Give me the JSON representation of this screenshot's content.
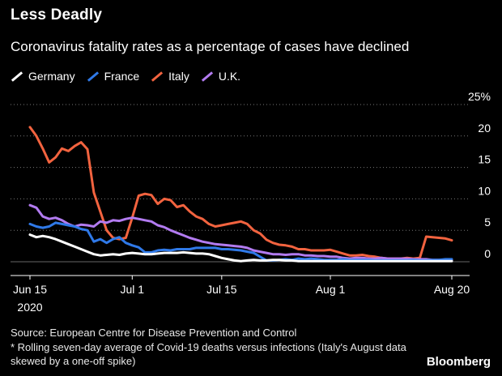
{
  "header": {
    "title": "Less Deadly",
    "subtitle": "Coronavirus fatality rates as a percentage of cases have declined"
  },
  "footer": {
    "source": "Source: European Centre for Disease Prevention and Control",
    "note": "* Rolling seven-day average of Covid-19 deaths versus infections (Italy's August data skewed by a one-off spike)",
    "brand": "Bloomberg"
  },
  "chart_data": {
    "type": "line",
    "title": "Less Deadly",
    "subtitle": "Coronavirus fatality rates as a percentage of cases have declined",
    "x_start": "2020-06-15",
    "x_end": "2020-08-21",
    "xticks": [
      {
        "day": 0,
        "label": "Jun 15",
        "sub": "2020"
      },
      {
        "day": 16,
        "label": "Jul 1",
        "sub": ""
      },
      {
        "day": 30,
        "label": "Jul 15",
        "sub": ""
      },
      {
        "day": 47,
        "label": "Aug 1",
        "sub": ""
      },
      {
        "day": 66,
        "label": "Aug 20",
        "sub": ""
      }
    ],
    "yticks": [
      {
        "value": 0,
        "label": "0"
      },
      {
        "value": 5,
        "label": "5"
      },
      {
        "value": 10,
        "label": "10"
      },
      {
        "value": 15,
        "label": "15"
      },
      {
        "value": 20,
        "label": "20"
      },
      {
        "value": 25,
        "label": "25%"
      }
    ],
    "ylim": [
      0,
      25
    ],
    "grid": true,
    "legend_position": "top-left",
    "series": [
      {
        "name": "Germany",
        "color": "#ffffff",
        "points": [
          [
            0,
            4.3
          ],
          [
            1,
            3.9
          ],
          [
            2,
            4.1
          ],
          [
            3,
            3.9
          ],
          [
            4,
            3.6
          ],
          [
            5,
            3.2
          ],
          [
            6,
            2.8
          ],
          [
            7,
            2.4
          ],
          [
            8,
            2.0
          ],
          [
            9,
            1.6
          ],
          [
            10,
            1.2
          ],
          [
            11,
            1.0
          ],
          [
            12,
            1.1
          ],
          [
            13,
            1.2
          ],
          [
            14,
            1.1
          ],
          [
            15,
            1.3
          ],
          [
            16,
            1.4
          ],
          [
            17,
            1.3
          ],
          [
            18,
            1.2
          ],
          [
            19,
            1.2
          ],
          [
            20,
            1.3
          ],
          [
            21,
            1.4
          ],
          [
            22,
            1.4
          ],
          [
            23,
            1.4
          ],
          [
            24,
            1.5
          ],
          [
            25,
            1.4
          ],
          [
            26,
            1.3
          ],
          [
            27,
            1.3
          ],
          [
            28,
            1.2
          ],
          [
            29,
            0.9
          ],
          [
            30,
            0.6
          ],
          [
            31,
            0.4
          ],
          [
            32,
            0.2
          ],
          [
            33,
            0.1
          ],
          [
            34,
            0.2
          ],
          [
            35,
            0.3
          ],
          [
            36,
            0.2
          ],
          [
            37,
            0.2
          ],
          [
            38,
            0.3
          ],
          [
            39,
            0.3
          ],
          [
            40,
            0.2
          ],
          [
            41,
            0.2
          ],
          [
            42,
            0.1
          ],
          [
            43,
            0.1
          ],
          [
            44,
            0.1
          ],
          [
            45,
            0.1
          ],
          [
            46,
            0.1
          ],
          [
            47,
            0.1
          ],
          [
            48,
            0.1
          ],
          [
            49,
            0.1
          ],
          [
            50,
            0.1
          ],
          [
            52,
            0.1
          ],
          [
            54,
            0.1
          ],
          [
            56,
            0.1
          ],
          [
            58,
            0.1
          ],
          [
            60,
            0.1
          ],
          [
            62,
            0.1
          ],
          [
            64,
            0.1
          ],
          [
            66,
            0.1
          ]
        ]
      },
      {
        "name": "France",
        "color": "#2f79e8",
        "points": [
          [
            0,
            6.0
          ],
          [
            1,
            5.6
          ],
          [
            2,
            5.4
          ],
          [
            3,
            5.6
          ],
          [
            4,
            6.2
          ],
          [
            5,
            6.0
          ],
          [
            6,
            5.8
          ],
          [
            7,
            5.6
          ],
          [
            8,
            5.2
          ],
          [
            9,
            5.0
          ],
          [
            10,
            3.2
          ],
          [
            11,
            3.6
          ],
          [
            12,
            3.0
          ],
          [
            13,
            3.6
          ],
          [
            14,
            3.9
          ],
          [
            15,
            3.0
          ],
          [
            16,
            2.6
          ],
          [
            17,
            2.3
          ],
          [
            18,
            1.5
          ],
          [
            19,
            1.5
          ],
          [
            20,
            1.8
          ],
          [
            21,
            1.9
          ],
          [
            22,
            1.8
          ],
          [
            23,
            2.0
          ],
          [
            24,
            2.0
          ],
          [
            25,
            2.0
          ],
          [
            26,
            2.2
          ],
          [
            27,
            2.2
          ],
          [
            28,
            2.2
          ],
          [
            29,
            2.2
          ],
          [
            30,
            2.0
          ],
          [
            31,
            2.0
          ],
          [
            32,
            1.9
          ],
          [
            33,
            1.8
          ],
          [
            34,
            1.6
          ],
          [
            35,
            1.4
          ],
          [
            36,
            0.8
          ],
          [
            37,
            0.2
          ],
          [
            38,
            0.2
          ],
          [
            39,
            0.3
          ],
          [
            40,
            0.4
          ],
          [
            41,
            0.3
          ],
          [
            42,
            0.5
          ],
          [
            43,
            0.4
          ],
          [
            44,
            0.5
          ],
          [
            45,
            0.4
          ],
          [
            46,
            0.3
          ],
          [
            47,
            0.3
          ],
          [
            48,
            0.3
          ],
          [
            49,
            0.4
          ],
          [
            50,
            0.3
          ],
          [
            51,
            0.3
          ],
          [
            52,
            0.3
          ],
          [
            53,
            0.3
          ],
          [
            54,
            0.2
          ],
          [
            55,
            0.2
          ],
          [
            56,
            0.2
          ],
          [
            57,
            0.2
          ],
          [
            58,
            0.2
          ],
          [
            59,
            0.2
          ],
          [
            60,
            0.3
          ],
          [
            61,
            0.2
          ],
          [
            62,
            0.2
          ],
          [
            63,
            0.3
          ],
          [
            64,
            0.3
          ],
          [
            65,
            0.4
          ],
          [
            66,
            0.4
          ]
        ]
      },
      {
        "name": "Italy",
        "color": "#f2633f",
        "points": [
          [
            0,
            21.4
          ],
          [
            1,
            20.0
          ],
          [
            2,
            18.0
          ],
          [
            3,
            15.8
          ],
          [
            4,
            16.6
          ],
          [
            5,
            18.0
          ],
          [
            6,
            17.6
          ],
          [
            7,
            18.4
          ],
          [
            8,
            19.0
          ],
          [
            9,
            17.9
          ],
          [
            10,
            11.0
          ],
          [
            11,
            8.0
          ],
          [
            12,
            5.0
          ],
          [
            13,
            3.8
          ],
          [
            14,
            3.6
          ],
          [
            15,
            3.8
          ],
          [
            16,
            7.0
          ],
          [
            17,
            10.5
          ],
          [
            18,
            10.8
          ],
          [
            19,
            10.6
          ],
          [
            20,
            9.2
          ],
          [
            21,
            10.0
          ],
          [
            22,
            9.8
          ],
          [
            23,
            8.7
          ],
          [
            24,
            9.0
          ],
          [
            25,
            8.0
          ],
          [
            26,
            7.2
          ],
          [
            27,
            6.8
          ],
          [
            28,
            6.0
          ],
          [
            29,
            5.6
          ],
          [
            30,
            5.8
          ],
          [
            31,
            6.0
          ],
          [
            32,
            6.2
          ],
          [
            33,
            6.4
          ],
          [
            34,
            6.0
          ],
          [
            35,
            5.0
          ],
          [
            36,
            4.5
          ],
          [
            37,
            3.5
          ],
          [
            38,
            3.0
          ],
          [
            39,
            2.7
          ],
          [
            40,
            2.6
          ],
          [
            41,
            2.4
          ],
          [
            42,
            2.0
          ],
          [
            43,
            2.0
          ],
          [
            44,
            1.8
          ],
          [
            45,
            1.8
          ],
          [
            46,
            1.8
          ],
          [
            47,
            1.9
          ],
          [
            48,
            1.6
          ],
          [
            49,
            1.3
          ],
          [
            50,
            1.0
          ],
          [
            51,
            1.0
          ],
          [
            52,
            1.1
          ],
          [
            53,
            0.9
          ],
          [
            54,
            0.8
          ],
          [
            55,
            0.6
          ],
          [
            56,
            0.5
          ],
          [
            57,
            0.5
          ],
          [
            58,
            0.5
          ],
          [
            59,
            0.6
          ],
          [
            60,
            0.5
          ],
          [
            61,
            0.6
          ],
          [
            62,
            4.0
          ],
          [
            63,
            3.9
          ],
          [
            64,
            3.8
          ],
          [
            65,
            3.7
          ],
          [
            66,
            3.4
          ]
        ]
      },
      {
        "name": "U.K.",
        "color": "#b27bf0",
        "points": [
          [
            0,
            9.0
          ],
          [
            1,
            8.6
          ],
          [
            2,
            7.2
          ],
          [
            3,
            6.8
          ],
          [
            4,
            7.0
          ],
          [
            5,
            6.6
          ],
          [
            6,
            6.0
          ],
          [
            7,
            5.6
          ],
          [
            8,
            5.9
          ],
          [
            9,
            5.8
          ],
          [
            10,
            5.6
          ],
          [
            11,
            6.4
          ],
          [
            12,
            6.2
          ],
          [
            13,
            6.6
          ],
          [
            14,
            6.5
          ],
          [
            15,
            6.8
          ],
          [
            16,
            7.0
          ],
          [
            17,
            6.8
          ],
          [
            18,
            6.6
          ],
          [
            19,
            6.4
          ],
          [
            20,
            5.8
          ],
          [
            21,
            5.5
          ],
          [
            22,
            5.0
          ],
          [
            23,
            4.6
          ],
          [
            24,
            4.2
          ],
          [
            25,
            3.8
          ],
          [
            26,
            3.5
          ],
          [
            27,
            3.2
          ],
          [
            28,
            3.0
          ],
          [
            29,
            2.8
          ],
          [
            30,
            2.7
          ],
          [
            31,
            2.6
          ],
          [
            32,
            2.5
          ],
          [
            33,
            2.4
          ],
          [
            34,
            2.2
          ],
          [
            35,
            1.8
          ],
          [
            36,
            1.6
          ],
          [
            37,
            1.4
          ],
          [
            38,
            1.2
          ],
          [
            39,
            1.2
          ],
          [
            40,
            1.1
          ],
          [
            41,
            1.2
          ],
          [
            42,
            1.2
          ],
          [
            43,
            1.0
          ],
          [
            44,
            1.0
          ],
          [
            45,
            0.9
          ],
          [
            46,
            0.9
          ],
          [
            47,
            0.8
          ],
          [
            48,
            0.8
          ],
          [
            49,
            0.6
          ],
          [
            50,
            0.5
          ],
          [
            51,
            0.6
          ],
          [
            52,
            0.6
          ],
          [
            53,
            0.5
          ],
          [
            54,
            0.5
          ],
          [
            55,
            0.6
          ],
          [
            56,
            0.5
          ],
          [
            57,
            0.5
          ],
          [
            58,
            0.5
          ],
          [
            59,
            0.5
          ],
          [
            60,
            0.4
          ],
          [
            61,
            0.4
          ],
          [
            62,
            0.4
          ],
          [
            63,
            0.3
          ],
          [
            64,
            0.3
          ],
          [
            65,
            0.3
          ],
          [
            66,
            0.3
          ]
        ]
      }
    ]
  }
}
